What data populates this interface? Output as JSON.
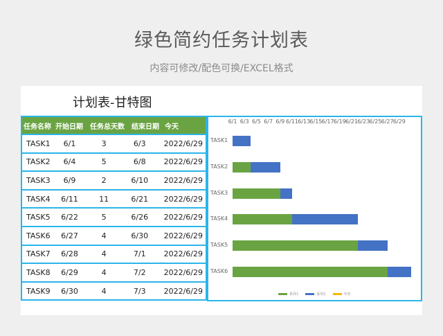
{
  "header": {
    "title": "绿色简约任务计划表",
    "subtitle": "内容可修改/配色可换/EXCEL格式"
  },
  "card": {
    "title": "计划表-甘特图"
  },
  "table": {
    "columns": [
      "任务名称",
      "开始日期",
      "任务总天数",
      "结束日期",
      "今天"
    ],
    "rows": [
      [
        "TASK1",
        "6/1",
        "3",
        "6/3",
        "2022/6/29"
      ],
      [
        "TASK2",
        "6/4",
        "5",
        "6/8",
        "2022/6/29"
      ],
      [
        "TASK3",
        "6/9",
        "2",
        "6/10",
        "2022/6/29"
      ],
      [
        "TASK4",
        "6/11",
        "11",
        "6/21",
        "2022/6/29"
      ],
      [
        "TASK5",
        "6/22",
        "5",
        "6/26",
        "2022/6/29"
      ],
      [
        "TASK6",
        "6/27",
        "4",
        "6/30",
        "2022/6/29"
      ],
      [
        "TASK7",
        "6/28",
        "4",
        "7/1",
        "2022/6/29"
      ],
      [
        "TASK8",
        "6/29",
        "4",
        "7/2",
        "2022/6/29"
      ],
      [
        "TASK9",
        "6/30",
        "4",
        "7/3",
        "2022/6/29"
      ]
    ]
  },
  "colors": {
    "green": "#6aa442",
    "blue": "#4472c4",
    "border": "#2ab5ea",
    "today": "#f5b800"
  },
  "chart_data": {
    "type": "bar",
    "orientation": "horizontal-stacked",
    "categories": [
      "TASK1",
      "TASK2",
      "TASK3",
      "TASK4",
      "TASK5",
      "TASK6"
    ],
    "series": [
      {
        "name": "系列1",
        "values": [
          0,
          3,
          8,
          10,
          21,
          26
        ],
        "color": "#6aa442"
      },
      {
        "name": "系列2",
        "values": [
          3,
          5,
          2,
          11,
          5,
          4
        ],
        "color": "#4472c4"
      }
    ],
    "x_ticks": [
      "6/1",
      "6/3",
      "6/5",
      "6/7",
      "6/9",
      "6/11",
      "6/13",
      "6/15",
      "6/17",
      "6/19",
      "6/21",
      "6/23",
      "6/25",
      "6/27",
      "6/29"
    ],
    "legend": [
      "系列1",
      "系列2",
      "今天"
    ],
    "legend_position": "bottom",
    "grid": false
  }
}
